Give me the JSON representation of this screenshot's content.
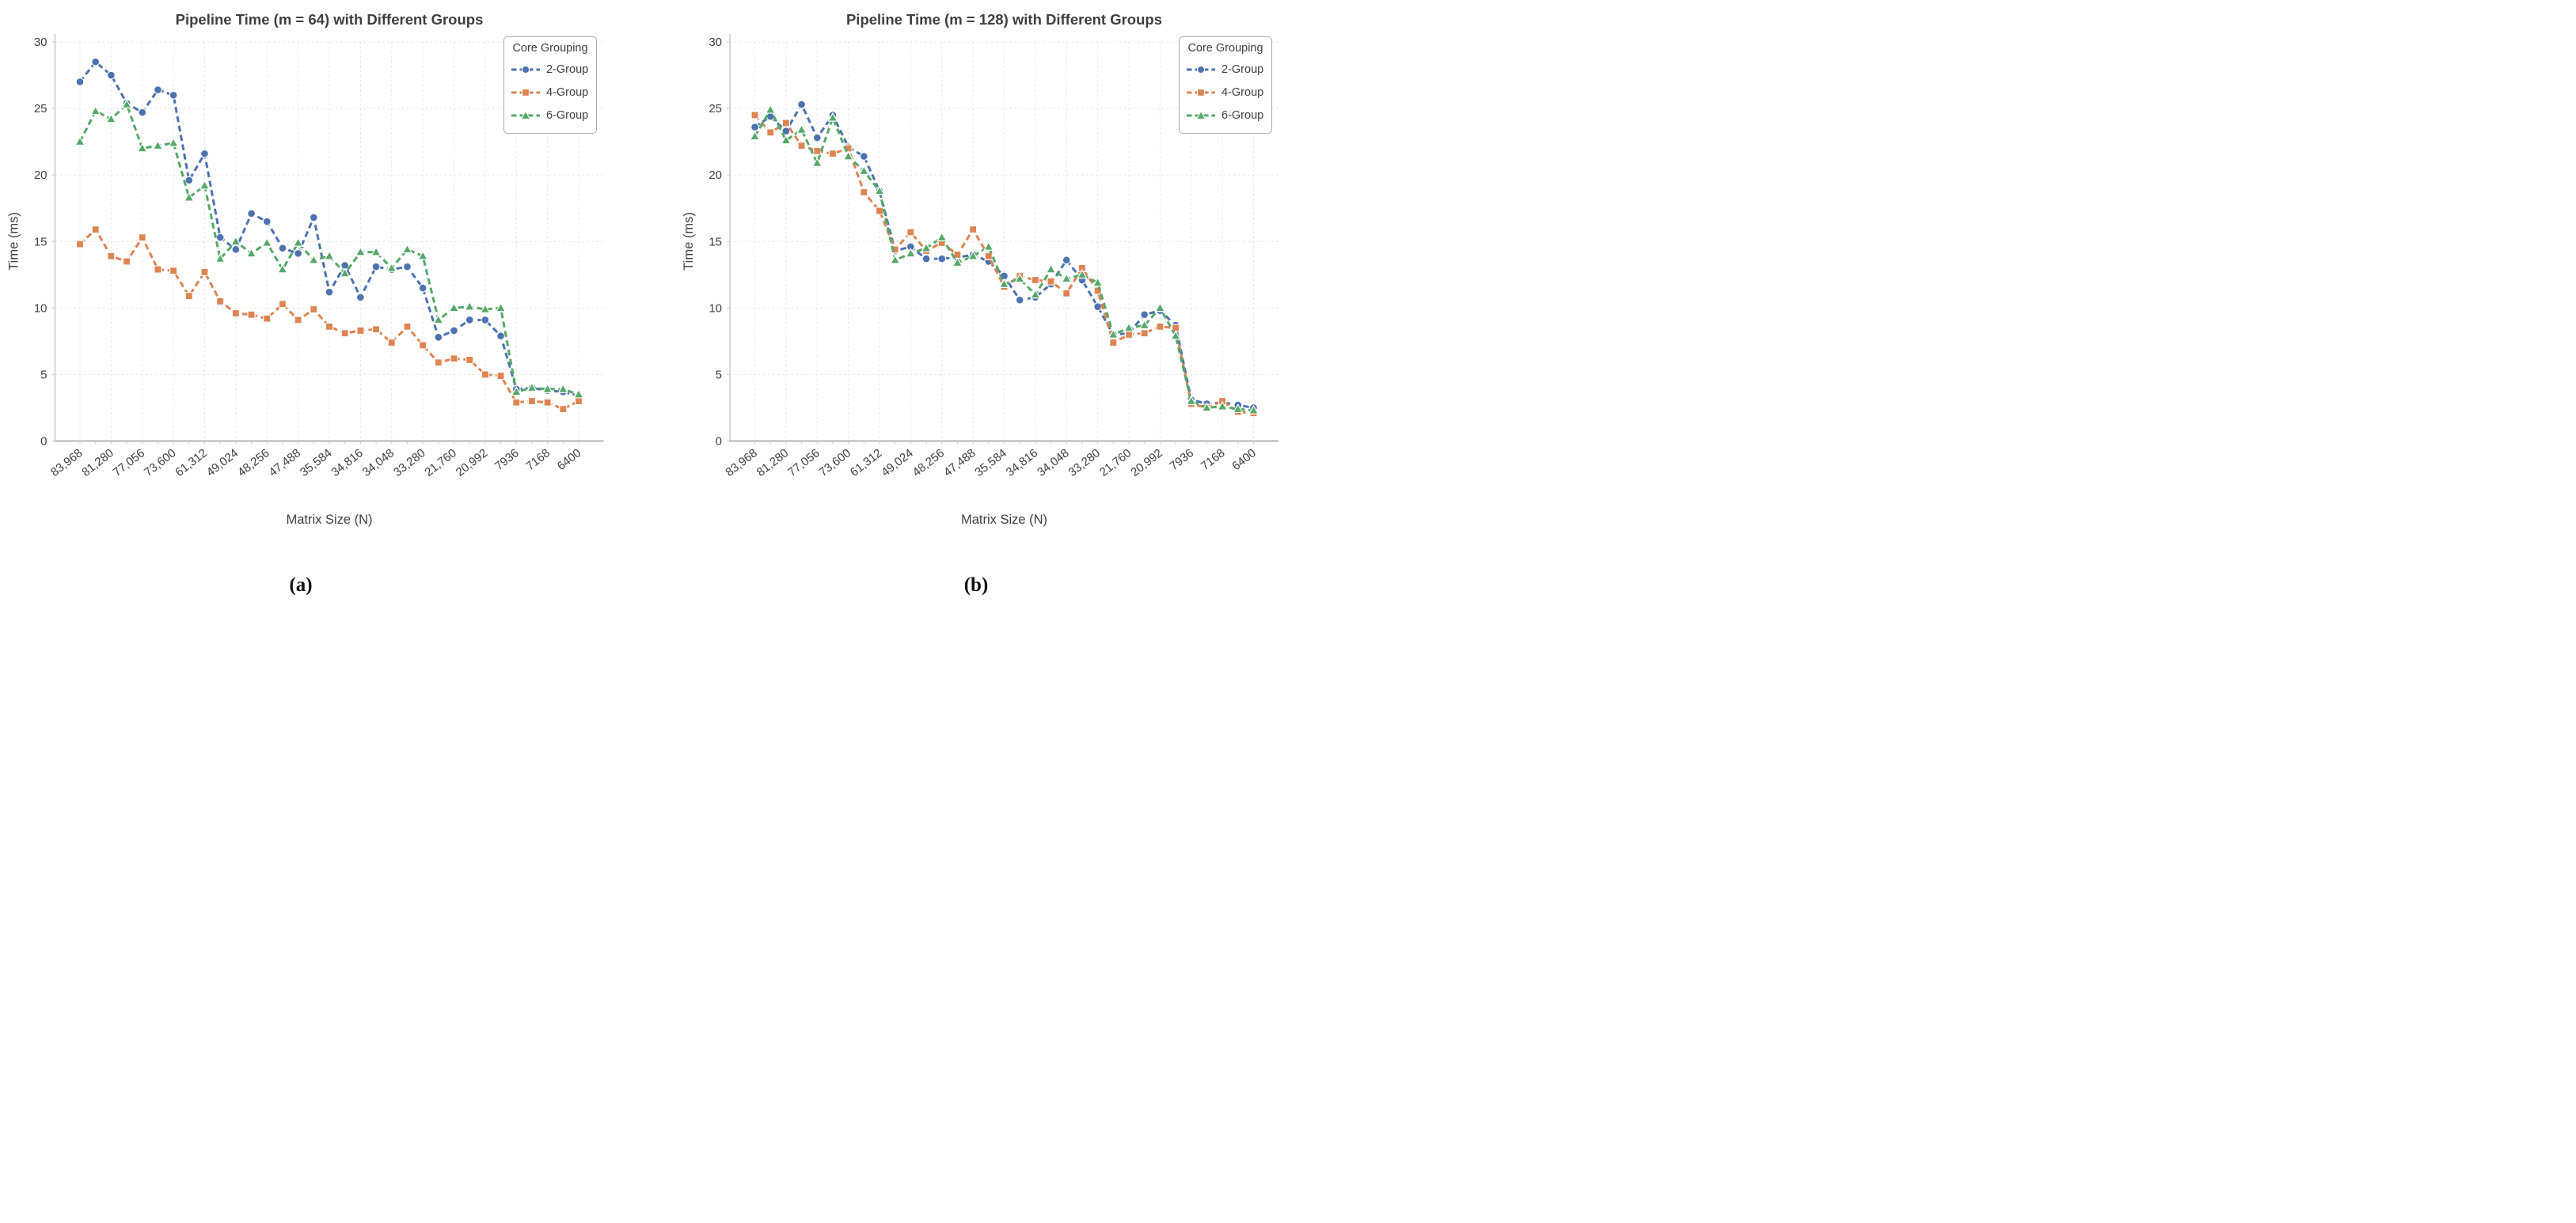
{
  "figure_text": {
    "xlabel": "Matrix Size (N)",
    "ylabel": "Time (ms)"
  },
  "legend": {
    "title": "Core Grouping",
    "entries": [
      {
        "label": "2-Group"
      },
      {
        "label": "4-Group"
      },
      {
        "label": "6-Group"
      }
    ]
  },
  "colors": {
    "blue": "#4C72B0",
    "orange": "#DD8452",
    "green": "#55A868",
    "text": "#3f3f3f",
    "grid": "#e4e4e4",
    "spine_left": "#cccccc",
    "spine_bottom": "#c3c3c3",
    "tick": "#c9c9c9"
  },
  "chart_data": [
    {
      "type": "line",
      "title": "Pipeline Time (m = 64) with Different Groups",
      "caption": "(a)",
      "xlabel": "Matrix Size (N)",
      "ylabel": "Time (ms)",
      "ylim": [
        0,
        30
      ],
      "y_ticks": [
        0,
        5,
        10,
        15,
        20,
        25,
        30
      ],
      "x_tick_labels": [
        "83,968",
        "81,280",
        "77,056",
        "73,600",
        "61,312",
        "49,024",
        "48,256",
        "47,488",
        "35,584",
        "34,816",
        "34,048",
        "33,280",
        "21,760",
        "20,992",
        "7936",
        "7168",
        "6400"
      ],
      "legend_position": "upper right",
      "grid": true,
      "series": [
        {
          "name": "2-Group",
          "color": "#4C72B0",
          "marker": "circle",
          "values": [
            27.0,
            28.5,
            27.5,
            25.4,
            24.7,
            26.4,
            26.0,
            19.6,
            21.6,
            15.3,
            14.4,
            17.1,
            16.5,
            14.5,
            14.1,
            16.8,
            11.2,
            13.2,
            10.8,
            13.1,
            12.9,
            13.1,
            11.5,
            7.8,
            8.3,
            9.1,
            9.1,
            7.9,
            3.9,
            4.0,
            3.8,
            3.7,
            3.4
          ]
        },
        {
          "name": "4-Group",
          "color": "#DD8452",
          "marker": "square",
          "values": [
            14.8,
            15.9,
            13.9,
            13.5,
            15.3,
            12.9,
            12.8,
            10.9,
            12.7,
            10.5,
            9.6,
            9.5,
            9.2,
            10.3,
            9.1,
            9.9,
            8.6,
            8.1,
            8.3,
            8.4,
            7.4,
            8.6,
            7.2,
            5.9,
            6.2,
            6.1,
            5.0,
            4.9,
            2.9,
            3.0,
            2.9,
            2.4,
            3.0
          ]
        },
        {
          "name": "6-Group",
          "color": "#55A868",
          "marker": "triangle",
          "values": [
            22.5,
            24.8,
            24.2,
            25.3,
            22.0,
            22.2,
            22.4,
            18.3,
            19.2,
            13.7,
            15.0,
            14.1,
            14.9,
            12.9,
            14.9,
            13.6,
            13.9,
            12.6,
            14.2,
            14.2,
            13.0,
            14.4,
            13.9,
            9.1,
            10.0,
            10.1,
            9.9,
            10.0,
            3.7,
            4.0,
            3.9,
            3.9,
            3.5
          ]
        }
      ]
    },
    {
      "type": "line",
      "title": "Pipeline Time (m = 128) with Different Groups",
      "caption": "(b)",
      "xlabel": "Matrix Size (N)",
      "ylabel": "Time (ms)",
      "ylim": [
        0,
        30
      ],
      "y_ticks": [
        0,
        5,
        10,
        15,
        20,
        25,
        30
      ],
      "x_tick_labels": [
        "83,968",
        "81,280",
        "77,056",
        "73,600",
        "61,312",
        "49,024",
        "48,256",
        "47,488",
        "35,584",
        "34,816",
        "34,048",
        "33,280",
        "21,760",
        "20,992",
        "7936",
        "7168",
        "6400"
      ],
      "legend_position": "upper right",
      "grid": true,
      "series": [
        {
          "name": "2-Group",
          "color": "#4C72B0",
          "marker": "circle",
          "values": [
            23.6,
            24.4,
            23.3,
            25.3,
            22.8,
            24.5,
            22.1,
            21.4,
            18.8,
            14.3,
            14.6,
            13.7,
            13.7,
            13.8,
            14.0,
            13.5,
            12.4,
            10.6,
            10.8,
            11.8,
            13.6,
            12.1,
            10.1,
            8.0,
            8.1,
            9.5,
            9.8,
            8.7,
            3.1,
            2.8,
            2.9,
            2.7,
            2.5
          ]
        },
        {
          "name": "4-Group",
          "color": "#DD8452",
          "marker": "square",
          "values": [
            24.5,
            23.2,
            23.9,
            22.2,
            21.8,
            21.6,
            22.0,
            18.7,
            17.3,
            14.4,
            15.7,
            14.3,
            14.9,
            14.0,
            15.9,
            13.9,
            11.6,
            12.4,
            12.1,
            12.0,
            11.1,
            13.0,
            11.3,
            7.4,
            8.0,
            8.1,
            8.6,
            8.5,
            2.8,
            2.5,
            3.0,
            2.2,
            2.1
          ]
        },
        {
          "name": "6-Group",
          "color": "#55A868",
          "marker": "triangle",
          "values": [
            22.9,
            24.9,
            22.6,
            23.4,
            20.9,
            24.3,
            21.4,
            20.3,
            18.8,
            13.6,
            14.1,
            14.5,
            15.3,
            13.4,
            13.9,
            14.6,
            11.8,
            12.2,
            11.0,
            12.9,
            12.2,
            12.5,
            11.9,
            8.0,
            8.5,
            8.7,
            10.0,
            7.9,
            3.0,
            2.5,
            2.6,
            2.4,
            2.3
          ]
        }
      ]
    }
  ]
}
